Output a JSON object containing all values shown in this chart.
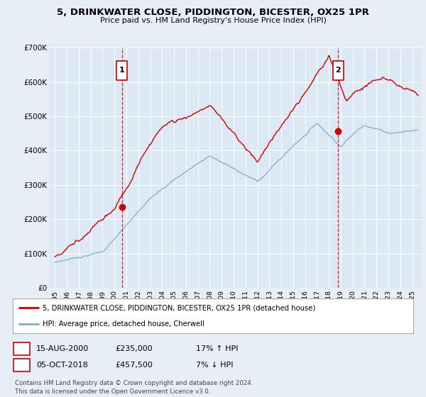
{
  "title_line1": "5, DRINKWATER CLOSE, PIDDINGTON, BICESTER, OX25 1PR",
  "title_line2": "Price paid vs. HM Land Registry's House Price Index (HPI)",
  "background_color": "#e8eef5",
  "plot_bg_color": "#dce8f4",
  "legend_entry1": "5, DRINKWATER CLOSE, PIDDINGTON, BICESTER, OX25 1PR (detached house)",
  "legend_entry2": "HPI: Average price, detached house, Cherwell",
  "annotation1": {
    "num": "1",
    "date": "15-AUG-2000",
    "price": "£235,000",
    "hpi": "17% ↑ HPI",
    "x_year": 2000.62
  },
  "annotation2": {
    "num": "2",
    "date": "05-OCT-2018",
    "price": "£457,500",
    "hpi": "7% ↓ HPI",
    "x_year": 2018.77
  },
  "footer_line1": "Contains HM Land Registry data © Crown copyright and database right 2024.",
  "footer_line2": "This data is licensed under the Open Government Licence v3.0.",
  "ylim": [
    0,
    700000
  ],
  "xlim_start": 1994.5,
  "xlim_end": 2025.8,
  "yticks": [
    0,
    100000,
    200000,
    300000,
    400000,
    500000,
    600000,
    700000
  ],
  "ytick_labels": [
    "£0",
    "£100K",
    "£200K",
    "£300K",
    "£400K",
    "£500K",
    "£600K",
    "£700K"
  ],
  "xticks": [
    1995,
    1996,
    1997,
    1998,
    1999,
    2000,
    2001,
    2002,
    2003,
    2004,
    2005,
    2006,
    2007,
    2008,
    2009,
    2010,
    2011,
    2012,
    2013,
    2014,
    2015,
    2016,
    2017,
    2018,
    2019,
    2020,
    2021,
    2022,
    2023,
    2024,
    2025
  ],
  "sale1_year": 2000.62,
  "sale1_price": 235000,
  "sale2_year": 2018.77,
  "sale2_price": 457500,
  "line_color_red": "#cc0000",
  "line_color_blue": "#7bafd4"
}
